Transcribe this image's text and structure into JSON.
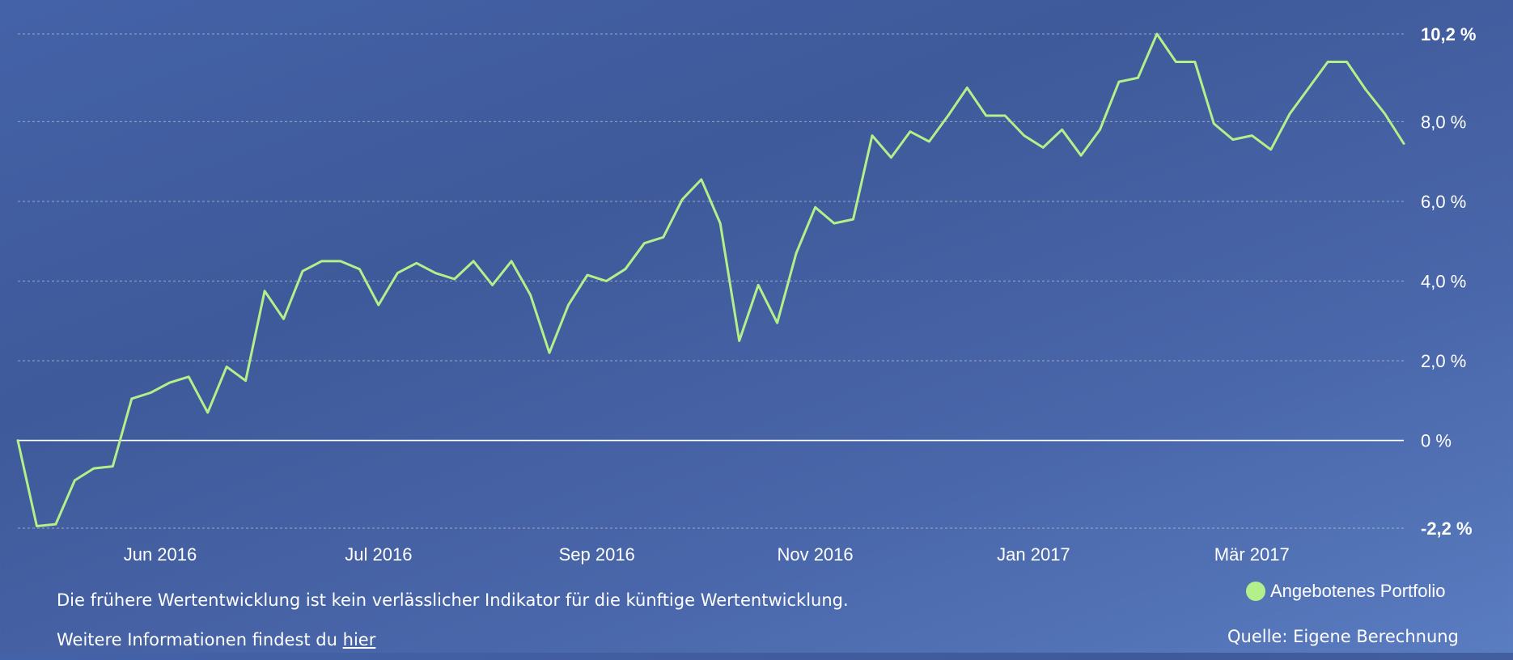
{
  "chart_data": {
    "type": "line",
    "y_tick_labels": [
      "10,2 %",
      "8,0 %",
      "6,0 %",
      "4,0 %",
      "2,0 %",
      "0 %",
      "-2,2 %"
    ],
    "y_tick_values": [
      10.2,
      8.0,
      6.0,
      4.0,
      2.0,
      0,
      -2.2
    ],
    "x_tick_labels": [
      "Jun 2016",
      "Jul 2016",
      "Sep 2016",
      "Nov 2016",
      "Jan 2017",
      "Mär 2017"
    ],
    "x_tick_positions": [
      7.5,
      19,
      30.5,
      42,
      53.5,
      65
    ],
    "ylim": [
      -2.2,
      10.2
    ],
    "grid": true,
    "legend_position": "bottom-right",
    "line_color": "#b3f08a",
    "series": [
      {
        "name": "Angebotenes Portfolio",
        "values": [
          0,
          -2.15,
          -2.1,
          -1.0,
          -0.7,
          -0.65,
          1.05,
          1.2,
          1.45,
          1.6,
          0.7,
          1.85,
          1.5,
          3.75,
          3.05,
          4.25,
          4.5,
          4.5,
          4.3,
          3.4,
          4.2,
          4.45,
          4.2,
          4.05,
          4.5,
          3.9,
          4.5,
          3.65,
          2.2,
          3.4,
          4.15,
          4.0,
          4.3,
          4.95,
          5.1,
          6.05,
          6.55,
          5.45,
          2.5,
          3.9,
          2.95,
          4.7,
          5.85,
          5.45,
          5.55,
          7.65,
          7.1,
          7.75,
          7.5,
          8.15,
          8.85,
          8.15,
          8.15,
          7.65,
          7.35,
          7.8,
          7.15,
          7.8,
          9.0,
          9.1,
          10.2,
          9.5,
          9.5,
          7.95,
          7.55,
          7.65,
          7.3,
          8.2,
          8.85,
          9.5,
          9.5,
          8.8,
          8.2,
          7.45
        ]
      }
    ]
  },
  "footer": {
    "disclaimer_text": "Die frühere Wertentwicklung ist kein verlässlicher Indikator für die künftige Wertentwicklung. Weitere Informationen findest du ",
    "link_text": "hier",
    "legend_label": "Angebotenes Portfolio",
    "source_text": "Quelle: Eigene Berechnung"
  }
}
